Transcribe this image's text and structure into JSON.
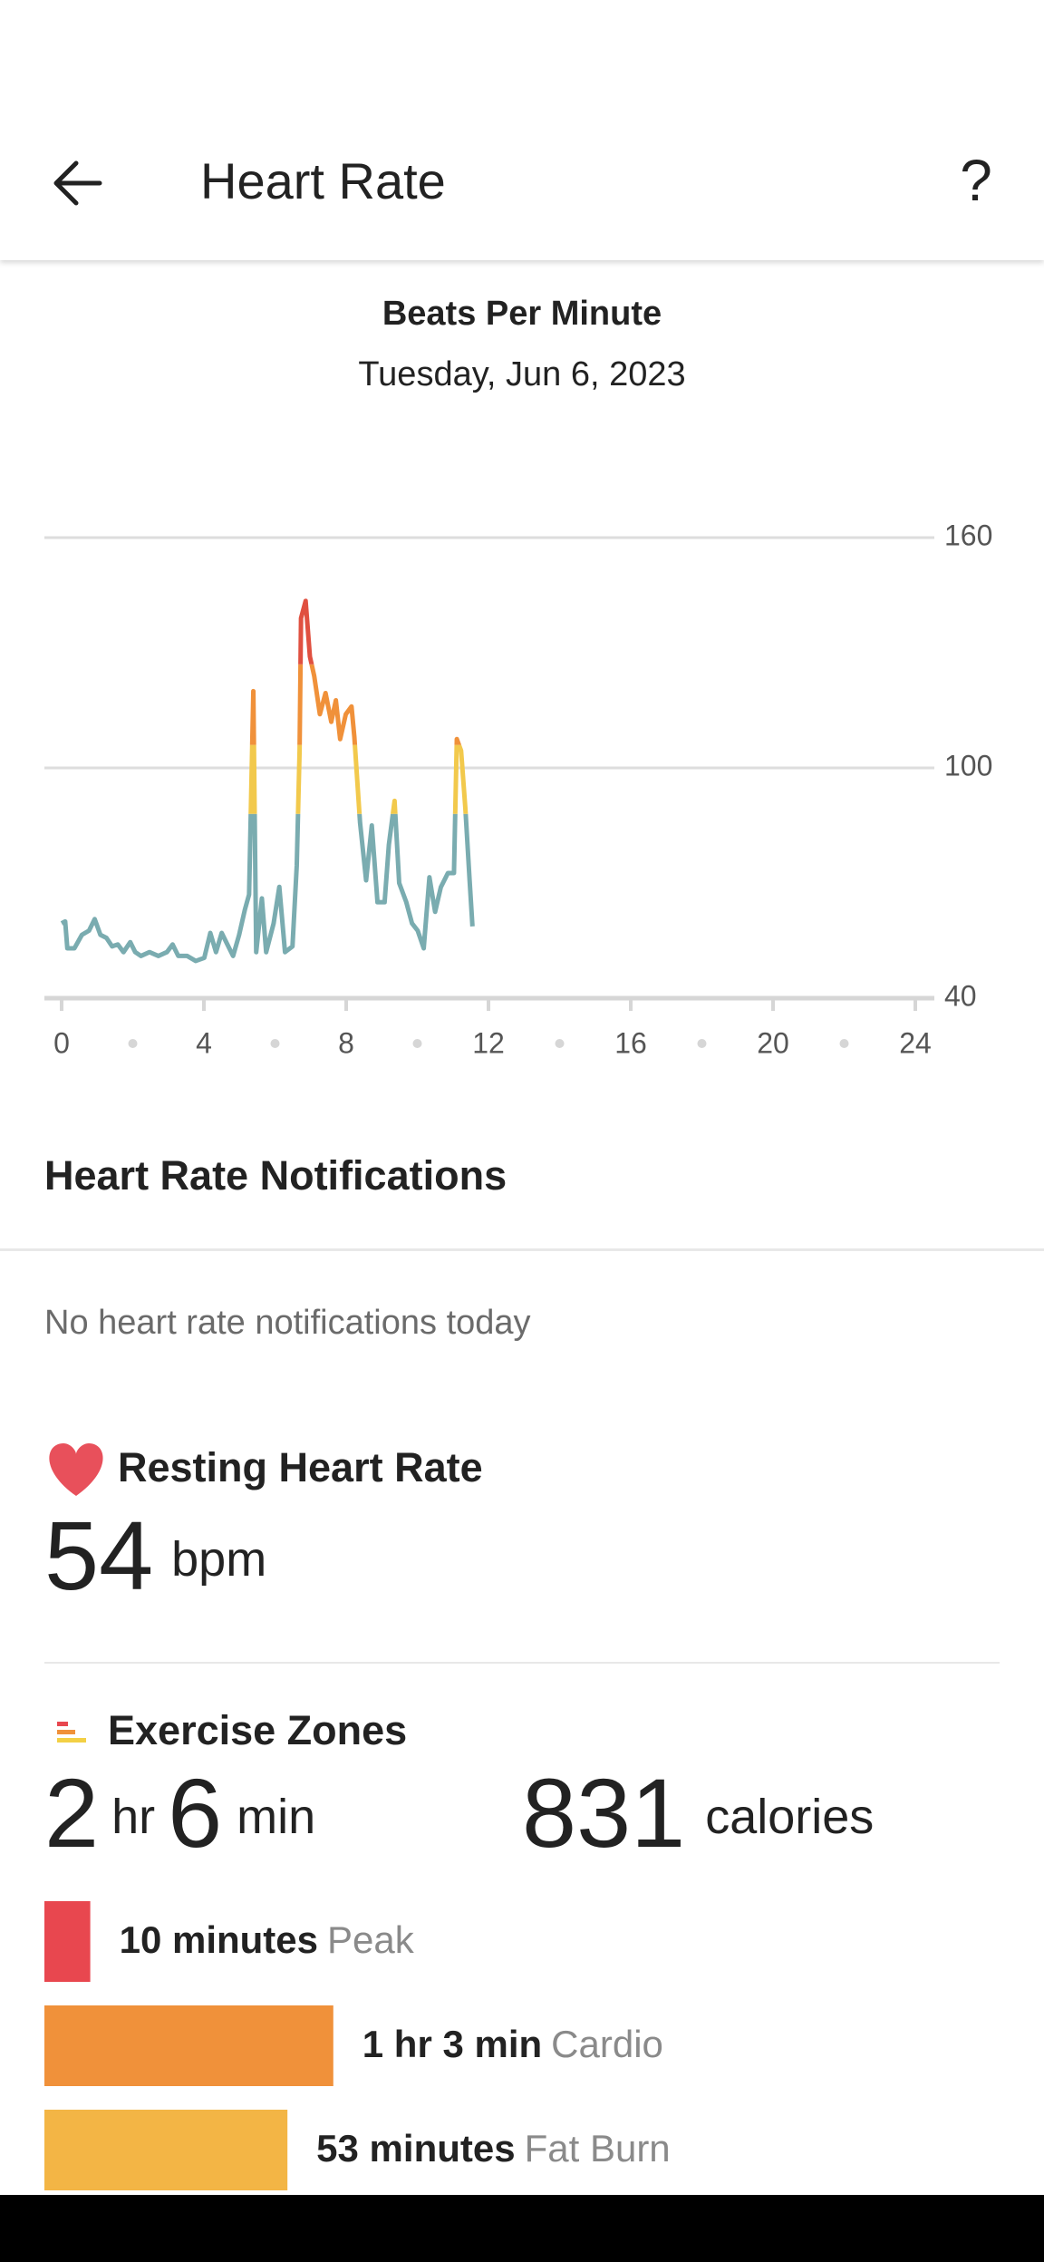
{
  "header": {
    "title": "Heart Rate",
    "help": "?"
  },
  "chart_data": {
    "type": "line",
    "title": "Beats Per Minute",
    "subtitle": "Tuesday, Jun 6, 2023",
    "x": [
      0,
      0.1,
      0.16,
      0.36,
      0.57,
      0.77,
      0.93,
      1.09,
      1.26,
      1.42,
      1.58,
      1.74,
      1.93,
      2.07,
      2.23,
      2.47,
      2.72,
      2.96,
      3.12,
      3.28,
      3.53,
      3.77,
      4.01,
      4.18,
      4.34,
      4.5,
      4.66,
      4.82,
      4.99,
      5.15,
      5.27,
      5.39,
      5.47,
      5.63,
      5.75,
      5.96,
      6.12,
      6.28,
      6.49,
      6.61,
      6.69,
      6.73,
      6.86,
      6.98,
      7.1,
      7.26,
      7.42,
      7.58,
      7.71,
      7.83,
      7.99,
      8.15,
      8.23,
      8.39,
      8.56,
      8.72,
      8.88,
      9.08,
      9.2,
      9.36,
      9.49,
      9.69,
      9.85,
      10.01,
      10.18,
      10.34,
      10.5,
      10.66,
      10.86,
      11.03,
      11.11,
      11.23,
      11.35,
      11.47,
      11.55
    ],
    "series": [
      {
        "color": "#7aacb0",
        "values": [
          59.5,
          60,
          53,
          53,
          56.5,
          57.6,
          60.6,
          56.5,
          55.7,
          53.5,
          54,
          52,
          54.6,
          52,
          51,
          52,
          51,
          52,
          54,
          51,
          51,
          49.7,
          50.5,
          57,
          52,
          57,
          54,
          51,
          56.5,
          63,
          67,
          120,
          52,
          66,
          52,
          59.5,
          69,
          52,
          53.5,
          74.5,
          104.5,
          139,
          143.5,
          129,
          124,
          114,
          119.5,
          112,
          117.6,
          107.5,
          114,
          116,
          108,
          85.7,
          70.7,
          85,
          65,
          65,
          80,
          91.4,
          70,
          65,
          59.5,
          57.6,
          53,
          71.5,
          62.5,
          68.9,
          72.6,
          72.6,
          107.5,
          104.5,
          89.5,
          70.7,
          58.7
        ]
      }
    ],
    "bands": [
      {
        "from": 40,
        "color": "#7aacb0"
      },
      {
        "from": 88,
        "color": "#f2c94c"
      },
      {
        "from": 106,
        "color": "#f0913a"
      },
      {
        "from": 127,
        "color": "#e05040"
      }
    ],
    "xlim": [
      0,
      24
    ],
    "xticks": [
      0,
      4,
      8,
      12,
      16,
      20,
      24
    ],
    "ylim": [
      40,
      160
    ],
    "yticks": [
      40,
      100,
      160
    ],
    "grid": true
  },
  "notifications": {
    "title": "Heart Rate Notifications",
    "message": "No heart rate notifications today"
  },
  "resting": {
    "title": "Resting Heart Rate",
    "value": 54,
    "unit": "bpm"
  },
  "zones": {
    "title": "Exercise Zones",
    "hours": 2,
    "hours_unit": "hr",
    "minutes": 6,
    "minutes_unit": "min",
    "calories": 831,
    "calories_unit": "calories",
    "items": [
      {
        "minutes": 10,
        "label": "10 minutes",
        "name": "Peak",
        "color": "#e8474f"
      },
      {
        "minutes": 63,
        "label": "1 hr 3 min",
        "name": "Cardio",
        "color": "#f0913a"
      },
      {
        "minutes": 53,
        "label": "53 minutes",
        "name": "Fat Burn",
        "color": "#f3b545"
      }
    ]
  }
}
